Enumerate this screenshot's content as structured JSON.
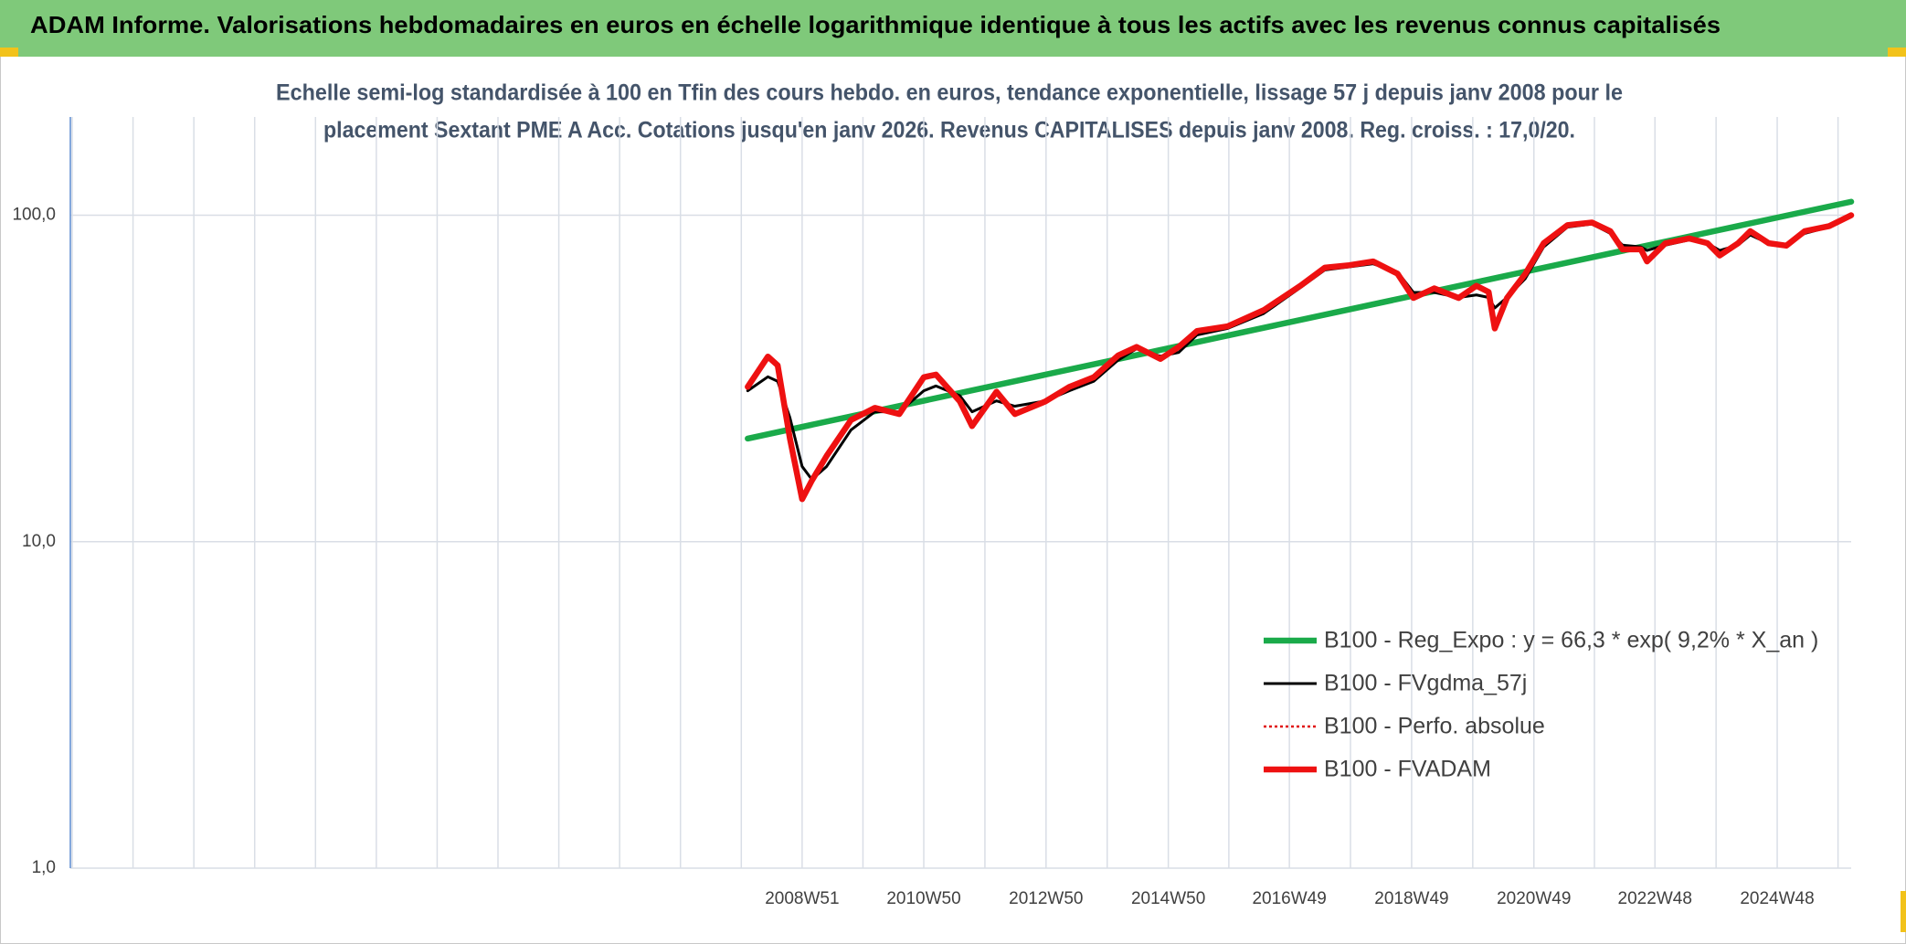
{
  "chart_data": {
    "type": "line",
    "title": "ADAM Informe. Valorisations hebdomadaires en euros en échelle logarithmique identique à tous les actifs avec les revenus connus capitalisés",
    "subtitle": [
      "Echelle semi-log standardisée à 100 en Tfin des cours hebdo. en euros, tendance exponentielle, lissage 57 j depuis janv 2008 pour le",
      "placement Sextant PME A Acc. Cotations jusqu'en janv 2026. Revenus CAPITALISES depuis janv 2008. Reg. croiss. : 17,0/20."
    ],
    "log_scale": true,
    "grid": true,
    "legend": "lower right",
    "xlim": [
      1997.0,
      2026.13
    ],
    "xticks": [
      {
        "value": 2008.97,
        "label": "2008W51"
      },
      {
        "value": 2010.96,
        "label": "2010W50"
      },
      {
        "value": 2012.96,
        "label": "2012W50"
      },
      {
        "value": 2014.96,
        "label": "2014W50"
      },
      {
        "value": 2016.94,
        "label": "2016W49"
      },
      {
        "value": 2018.94,
        "label": "2018W49"
      },
      {
        "value": 2020.94,
        "label": "2020W49"
      },
      {
        "value": 2022.92,
        "label": "2022W48"
      },
      {
        "value": 2024.92,
        "label": "2024W48"
      }
    ],
    "ylim": [
      1,
      200
    ],
    "yticks": [
      {
        "value": 1,
        "label": "1,0"
      },
      {
        "value": 10,
        "label": "10,0"
      },
      {
        "value": 100,
        "label": "100,0"
      }
    ],
    "series": [
      {
        "name": "B100 - Reg_Expo : y = 66,3 * exp( 9,2% *  X_an )",
        "color": "#1aaa4a",
        "style": "thick",
        "x": [
          2008.08,
          2026.13
        ],
        "values": [
          20.7,
          110
        ]
      },
      {
        "name": "B100 - FVgdma_57j",
        "color": "#000000",
        "style": "thin",
        "x": [
          2008.08,
          2008.41,
          2008.57,
          2008.77,
          2008.97,
          2009.13,
          2009.37,
          2009.77,
          2010.16,
          2010.56,
          2010.96,
          2011.16,
          2011.55,
          2011.75,
          2012.15,
          2012.45,
          2012.95,
          2013.34,
          2013.74,
          2014.14,
          2014.44,
          2014.83,
          2015.13,
          2015.43,
          2015.93,
          2016.52,
          2017.12,
          2017.52,
          2017.92,
          2018.31,
          2018.71,
          2018.97,
          2019.31,
          2019.71,
          2020.0,
          2020.2,
          2020.3,
          2020.5,
          2020.8,
          2021.1,
          2021.49,
          2021.89,
          2022.19,
          2022.39,
          2022.69,
          2022.79,
          2023.09,
          2023.48,
          2023.78,
          2023.98,
          2024.28,
          2024.48,
          2024.78,
          2025.07,
          2025.37,
          2025.77,
          2026.13
        ],
        "values": [
          29,
          32,
          31,
          24,
          17,
          15.5,
          17,
          22,
          25,
          25,
          29,
          30,
          28,
          25,
          27,
          26,
          27,
          29,
          31,
          36,
          39,
          37,
          38,
          43,
          45,
          50,
          60,
          68,
          69.5,
          71,
          67,
          58,
          58,
          56,
          57,
          56,
          52,
          56,
          64,
          80,
          92,
          94,
          88,
          81,
          80,
          78,
          81,
          84,
          82,
          78,
          81,
          87,
          82,
          81,
          88,
          92,
          99
        ]
      },
      {
        "name": "B100 - Perfo. absolue",
        "color": "#e01010",
        "style": "dotted",
        "x": [
          2008.08,
          2008.41,
          2008.57,
          2008.77,
          2008.97,
          2009.13,
          2009.37,
          2009.77,
          2010.16,
          2010.56,
          2010.96,
          2011.16,
          2011.55,
          2011.75,
          2012.15,
          2012.45,
          2012.95,
          2013.34,
          2013.74,
          2014.14,
          2014.44,
          2014.83,
          2015.13,
          2015.43,
          2015.93,
          2016.52,
          2017.12,
          2017.52,
          2017.92,
          2018.31,
          2018.71,
          2018.97,
          2019.31,
          2019.71,
          2020.0,
          2020.2,
          2020.3,
          2020.5,
          2020.8,
          2021.1,
          2021.49,
          2021.89,
          2022.19,
          2022.39,
          2022.69,
          2022.79,
          2023.09,
          2023.48,
          2023.78,
          2023.98,
          2024.28,
          2024.48,
          2024.78,
          2025.07,
          2025.37,
          2025.77,
          2026.13
        ],
        "values": [
          29.8,
          36.9,
          34.7,
          20.7,
          13.5,
          15.4,
          18.3,
          23.6,
          25.7,
          24.6,
          31.9,
          32.5,
          26.9,
          22.6,
          28.8,
          24.6,
          26.9,
          29.8,
          31.9,
          37.2,
          39.5,
          36.3,
          39.5,
          44.2,
          45.7,
          51.2,
          60.8,
          69.1,
          70.3,
          72.2,
          66.2,
          55.8,
          59.7,
          55.8,
          60.8,
          58.2,
          45.0,
          55.8,
          66.2,
          82.1,
          93.3,
          95.0,
          89.4,
          78.6,
          78.6,
          72.2,
          82.1,
          84.9,
          82.1,
          75.3,
          82.1,
          89.4,
          82.1,
          80.7,
          89.4,
          92.6,
          100
        ]
      },
      {
        "name": "B100 - FVADAM",
        "color": "#ee1111",
        "style": "thick",
        "x": [
          2008.08,
          2008.41,
          2008.57,
          2008.77,
          2008.97,
          2009.13,
          2009.37,
          2009.77,
          2010.16,
          2010.56,
          2010.96,
          2011.16,
          2011.55,
          2011.75,
          2012.15,
          2012.45,
          2012.95,
          2013.34,
          2013.74,
          2014.14,
          2014.44,
          2014.83,
          2015.13,
          2015.43,
          2015.93,
          2016.52,
          2017.12,
          2017.52,
          2017.92,
          2018.31,
          2018.71,
          2018.97,
          2019.31,
          2019.71,
          2020.0,
          2020.2,
          2020.3,
          2020.5,
          2020.8,
          2021.1,
          2021.49,
          2021.89,
          2022.19,
          2022.39,
          2022.69,
          2022.79,
          2023.09,
          2023.48,
          2023.78,
          2023.98,
          2024.28,
          2024.48,
          2024.78,
          2025.07,
          2025.37,
          2025.77,
          2026.13
        ],
        "values": [
          29.8,
          36.9,
          34.7,
          20.7,
          13.5,
          15.4,
          18.3,
          23.6,
          25.7,
          24.6,
          31.9,
          32.5,
          26.9,
          22.6,
          28.8,
          24.6,
          26.9,
          29.8,
          31.9,
          37.2,
          39.5,
          36.3,
          39.5,
          44.2,
          45.7,
          51.2,
          60.8,
          69.1,
          70.3,
          72.2,
          66.2,
          55.8,
          59.7,
          55.8,
          60.8,
          58.2,
          45.0,
          55.8,
          66.2,
          82.1,
          93.3,
          95.0,
          89.4,
          78.6,
          78.6,
          72.2,
          82.1,
          84.9,
          82.1,
          75.3,
          82.1,
          89.4,
          82.1,
          80.7,
          89.4,
          92.6,
          100
        ]
      }
    ]
  }
}
